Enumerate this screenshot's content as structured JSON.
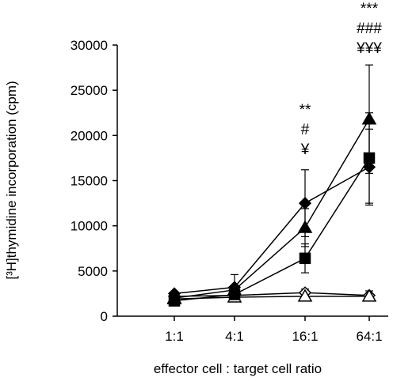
{
  "chart_data": {
    "type": "line",
    "title": "",
    "xlabel": "effector cell : target cell ratio",
    "ylabel": "[³H]thymidine incorporation (cpm)",
    "ylim": [
      0,
      30000
    ],
    "yticks": [
      0,
      5000,
      10000,
      15000,
      20000,
      25000,
      30000
    ],
    "categories": [
      "1:1",
      "4:1",
      "16:1",
      "64:1"
    ],
    "grid": false,
    "legend": "none",
    "series": [
      {
        "marker": "filled-diamond",
        "values": [
          2500,
          3200,
          12500,
          16500
        ],
        "errors": [
          0,
          1400,
          3700,
          4200
        ]
      },
      {
        "marker": "filled-triangle",
        "values": [
          2000,
          2900,
          9800,
          21800
        ],
        "errors": [
          0,
          0,
          2100,
          6000
        ]
      },
      {
        "marker": "filled-square",
        "values": [
          1700,
          2400,
          6400,
          17500
        ],
        "errors": [
          0,
          0,
          1600,
          5000
        ]
      },
      {
        "marker": "open-diamond",
        "values": [
          2200,
          2300,
          2600,
          2300
        ],
        "errors": [
          0,
          300,
          400,
          500
        ]
      },
      {
        "marker": "open-triangle",
        "values": [
          1900,
          2100,
          2200,
          2200
        ],
        "errors": [
          0,
          0,
          0,
          0
        ]
      }
    ],
    "annotations": [
      {
        "category": "16:1",
        "lines": [
          "**",
          "#",
          "¥"
        ]
      },
      {
        "category": "64:1",
        "lines": [
          "***",
          "###",
          "¥¥¥"
        ]
      }
    ]
  }
}
